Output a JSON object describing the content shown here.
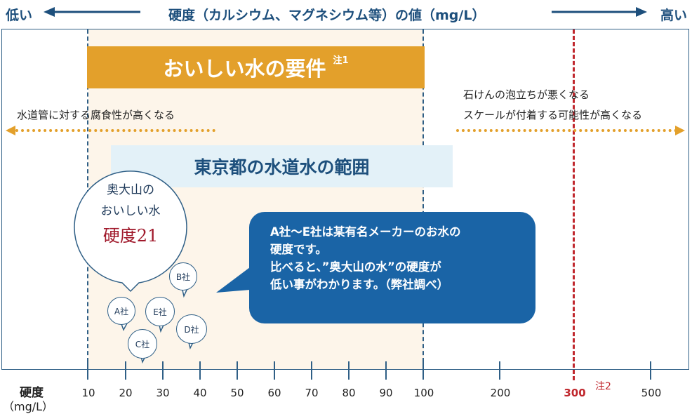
{
  "header": {
    "low": "低い",
    "title": "硬度（カルシウム、マグネシウム等）の値（mg/L）",
    "high": "高い"
  },
  "banner": {
    "label": "おいしい水の要件",
    "note": "注1"
  },
  "range_label": "東京都の水道水の範囲",
  "left_note": "水道管に対する腐食性が高くなる",
  "right_notes": [
    "石けんの泡立ちが悪くなる",
    "スケールが付着する可能性が高くなる"
  ],
  "bubble": {
    "line1": "奥大山の",
    "line2": "おいしい水",
    "line3": "硬度21"
  },
  "info": [
    "A社〜E社は某有名メーカーのお水の",
    "硬度です。",
    "比べると、”奥大山の水”の硬度が",
    "低い事がわかります。（弊社調べ）"
  ],
  "companies": [
    "A社",
    "B社",
    "C社",
    "D社",
    "E社"
  ],
  "axis": {
    "label_line1": "硬度",
    "label_line2": "（mg/L）",
    "ticks": [
      "10",
      "20",
      "30",
      "40",
      "50",
      "60",
      "70",
      "80",
      "90",
      "100",
      "200",
      "300",
      "500"
    ],
    "note2": "注2"
  },
  "colors": {
    "accent": "#e3a02b",
    "primary": "#1d4f7c",
    "limit": "#c0272d",
    "bubble_text": "#a0192b"
  }
}
